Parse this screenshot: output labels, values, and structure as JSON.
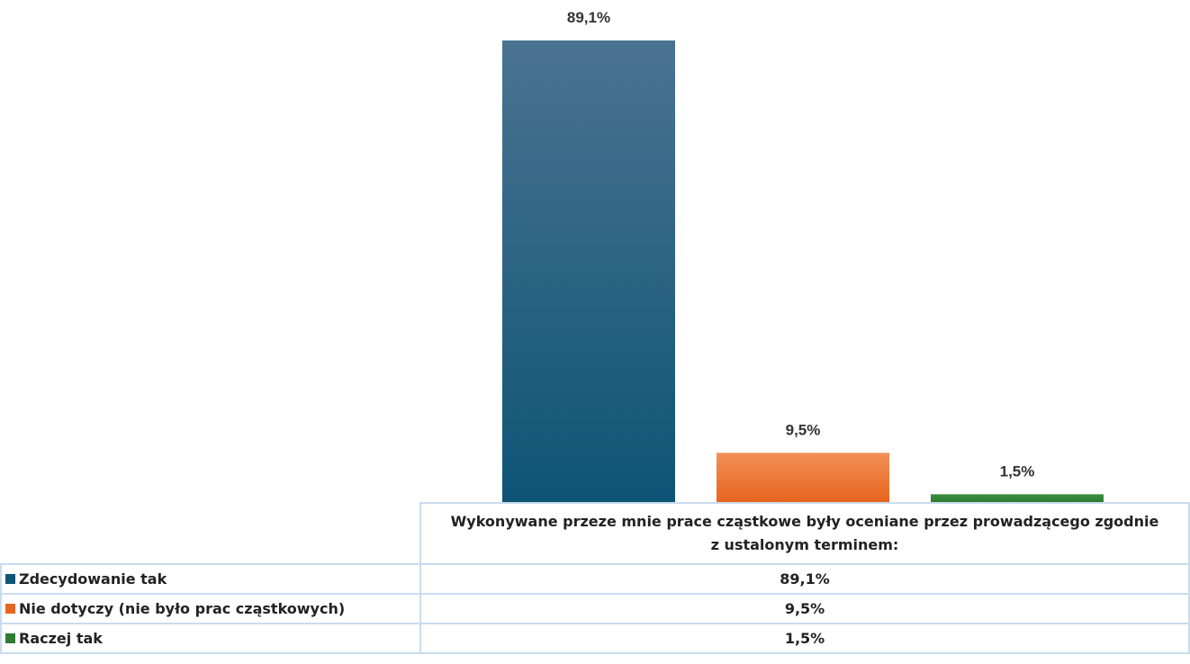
{
  "chart_data": {
    "type": "bar",
    "categories": [
      "Wykonywane przeze mnie prace cząstkowe były oceniane przez prowadzącego zgodnie z ustalonym terminem:"
    ],
    "series": [
      {
        "name": "Zdecydowanie tak",
        "color": "#0e5475",
        "values": [
          89.1
        ],
        "value_labels": [
          "89,1%"
        ]
      },
      {
        "name": "Nie dotyczy (nie było prac cząstkowych)",
        "color": "#e8651e",
        "values": [
          9.5
        ],
        "value_labels": [
          "9,5%"
        ]
      },
      {
        "name": "Raczej tak",
        "color": "#2e7d32",
        "values": [
          1.5
        ],
        "value_labels": [
          "1,5%"
        ]
      }
    ]
  }
}
